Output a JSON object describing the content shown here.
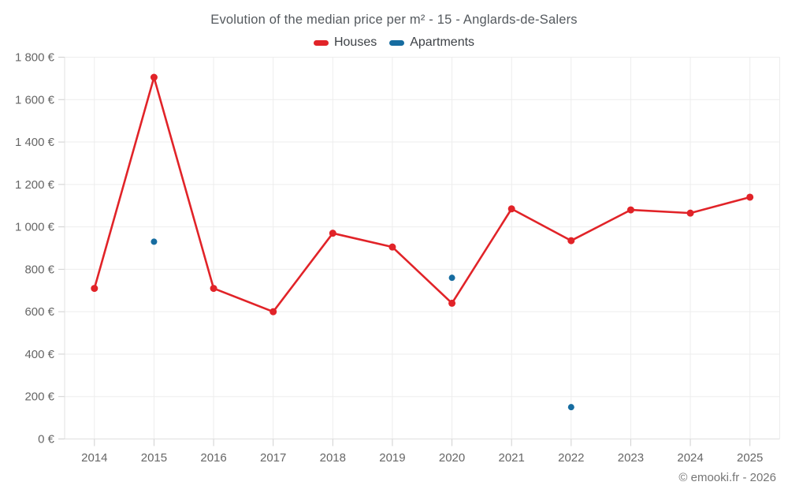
{
  "title": "Evolution of the median price per m² - 15 - Anglards-de-Salers",
  "legend": [
    {
      "label": "Houses",
      "color": "#e12328"
    },
    {
      "label": "Apartments",
      "color": "#166ca0"
    }
  ],
  "footer": "© emooki.fr - 2026",
  "colors": {
    "houses": "#e12328",
    "apartments": "#166ca0",
    "gridline": "#ededed",
    "axis_line": "#e0e0e0",
    "tick": "#cfcfcf",
    "axis_label": "#666666"
  },
  "chart_data": {
    "type": "line",
    "title": "Evolution of the median price per m² - 15 - Anglards-de-Salers",
    "categories": [
      "2014",
      "2015",
      "2016",
      "2017",
      "2018",
      "2019",
      "2020",
      "2021",
      "2022",
      "2023",
      "2024",
      "2025"
    ],
    "series": [
      {
        "name": "Houses",
        "type": "line",
        "color": "#e12328",
        "values": [
          710,
          1705,
          710,
          600,
          970,
          905,
          640,
          1085,
          935,
          1080,
          1065,
          1140
        ]
      },
      {
        "name": "Apartments",
        "type": "scatter",
        "color": "#166ca0",
        "values": [
          null,
          930,
          null,
          null,
          null,
          null,
          760,
          null,
          150,
          null,
          null,
          null
        ]
      }
    ],
    "xlabel": "",
    "ylabel": "",
    "ylim": [
      0,
      1800
    ],
    "ytick_step": 200,
    "ytick_suffix": " €",
    "grid": true,
    "legend_position": "top"
  }
}
